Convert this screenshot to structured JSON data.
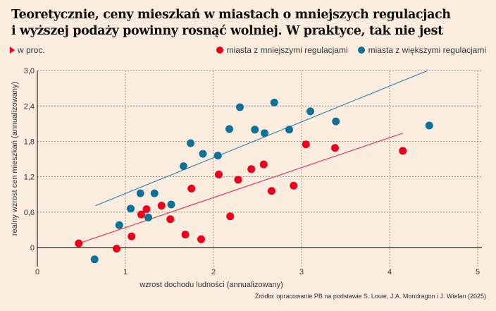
{
  "chart_data": {
    "type": "scatter",
    "title": "Teoretycznie, ceny mieszkań w miastach o mniejszych regulacjach i wyższej podaży powinny rosnąć wolniej. W praktyce, tak nie jest",
    "title_lines": [
      "Teoretycznie, ceny mieszkań w miastach o mniejszych regulacjach",
      "i wyższej podaży powinny rosnąć wolniej. W praktyce, tak nie jest"
    ],
    "unit": "w proc.",
    "xlabel": "wzrost dochodu ludności (annualizowany)",
    "ylabel": "realny wzrost cen mieszkań (annualizowany)",
    "xlim": [
      0,
      5
    ],
    "ylim": [
      -0.3,
      3.0
    ],
    "x_ticks": [
      "0",
      "1",
      "2",
      "3",
      "4",
      "5"
    ],
    "x_tick_values": [
      0,
      1,
      2,
      3,
      4,
      5
    ],
    "y_ticks": [
      "0",
      "0,6",
      "1,2",
      "1,8",
      "2,4",
      "3,0"
    ],
    "y_tick_values": [
      0,
      0.6,
      1.2,
      1.8,
      2.4,
      3.0
    ],
    "grid": true,
    "legend_position": "top-right",
    "series": [
      {
        "name": "miasta z mniejszymi regulacjami",
        "color": "#e8001c",
        "points": [
          [
            0.47,
            0.07
          ],
          [
            0.9,
            -0.02
          ],
          [
            1.07,
            0.19
          ],
          [
            1.18,
            0.56
          ],
          [
            1.24,
            0.65
          ],
          [
            1.41,
            0.71
          ],
          [
            1.51,
            0.48
          ],
          [
            1.68,
            0.22
          ],
          [
            1.75,
            1.0
          ],
          [
            1.86,
            0.14
          ],
          [
            2.06,
            1.24
          ],
          [
            2.19,
            0.53
          ],
          [
            2.28,
            1.15
          ],
          [
            2.43,
            1.33
          ],
          [
            2.57,
            1.41
          ],
          [
            2.66,
            0.96
          ],
          [
            2.91,
            1.05
          ],
          [
            3.05,
            1.75
          ],
          [
            3.38,
            1.69
          ],
          [
            4.15,
            1.64
          ]
        ],
        "trendline": [
          [
            0.47,
            0.07
          ],
          [
            4.15,
            1.94
          ]
        ],
        "trend_color": "#d8404a"
      },
      {
        "name": "miasta z większymi regulacjami",
        "color": "#0f7196",
        "points": [
          [
            0.65,
            -0.2
          ],
          [
            0.93,
            0.38
          ],
          [
            1.06,
            0.66
          ],
          [
            1.17,
            0.92
          ],
          [
            1.26,
            0.51
          ],
          [
            1.33,
            0.92
          ],
          [
            1.52,
            0.73
          ],
          [
            1.66,
            1.38
          ],
          [
            1.74,
            1.77
          ],
          [
            1.88,
            1.59
          ],
          [
            2.05,
            1.56
          ],
          [
            2.18,
            2.01
          ],
          [
            2.3,
            2.38
          ],
          [
            2.47,
            2.0
          ],
          [
            2.58,
            1.94
          ],
          [
            2.69,
            2.46
          ],
          [
            2.86,
            2.0
          ],
          [
            3.1,
            2.31
          ],
          [
            3.39,
            2.14
          ],
          [
            4.45,
            2.07
          ]
        ],
        "trendline": [
          [
            0.66,
            0.71
          ],
          [
            4.43,
            3.0
          ]
        ],
        "trend_color": "#3a8aa8"
      }
    ]
  },
  "source": "Źródło: opracowanie PB na podstawie S. Louie, J.A. Mondragon i J. Wielan (2025)",
  "colors": {
    "background": "#fbece0",
    "grid": "#a09080",
    "axis": "#222222"
  }
}
